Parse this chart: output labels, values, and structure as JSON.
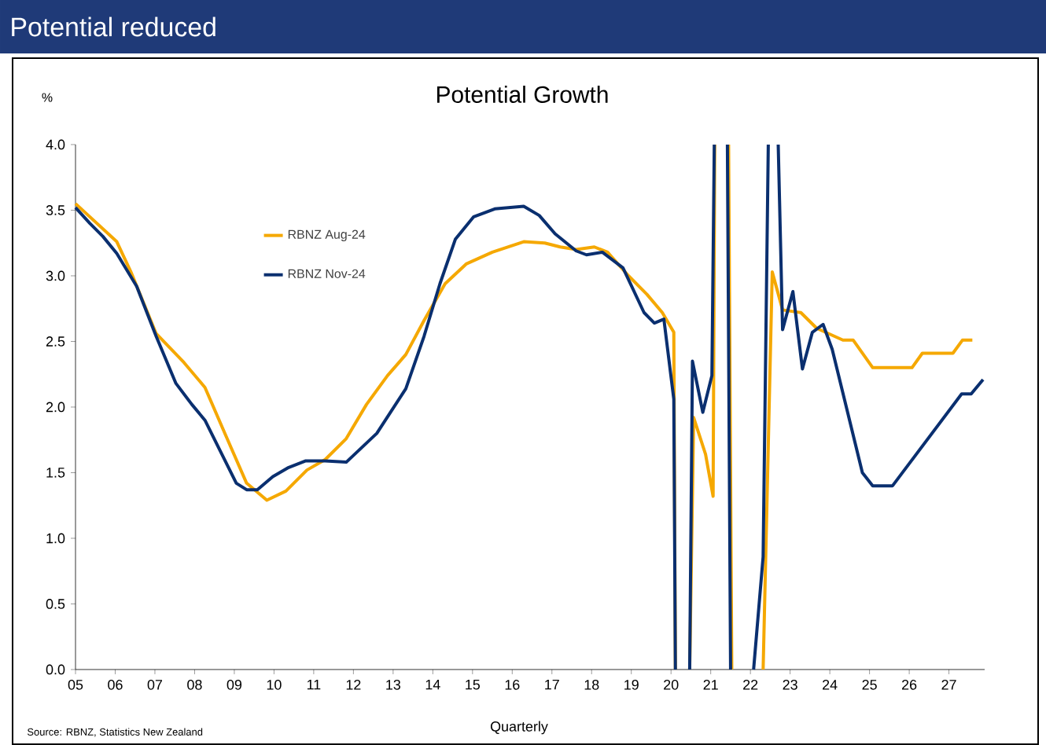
{
  "chart_data": {
    "type": "line",
    "title": "Potential reduced",
    "subtitle": "Potential Growth",
    "xlabel": "Quarterly",
    "ylabel": "%",
    "annotations": [
      "Source: RBNZ, Statistics New Zealand"
    ],
    "xlim": [
      2005,
      2027.9
    ],
    "ylim": [
      0,
      4
    ],
    "xticks": [
      {
        "value": 2005,
        "label": "05"
      },
      {
        "value": 2006,
        "label": "06"
      },
      {
        "value": 2007,
        "label": "07"
      },
      {
        "value": 2008,
        "label": "08"
      },
      {
        "value": 2009,
        "label": "09"
      },
      {
        "value": 2010,
        "label": "10"
      },
      {
        "value": 2011,
        "label": "11"
      },
      {
        "value": 2012,
        "label": "12"
      },
      {
        "value": 2013,
        "label": "13"
      },
      {
        "value": 2014,
        "label": "14"
      },
      {
        "value": 2015,
        "label": "15"
      },
      {
        "value": 2016,
        "label": "16"
      },
      {
        "value": 2017,
        "label": "17"
      },
      {
        "value": 2018,
        "label": "18"
      },
      {
        "value": 2019,
        "label": "19"
      },
      {
        "value": 2020,
        "label": "20"
      },
      {
        "value": 2021,
        "label": "21"
      },
      {
        "value": 2022,
        "label": "22"
      },
      {
        "value": 2023,
        "label": "23"
      },
      {
        "value": 2024,
        "label": "24"
      },
      {
        "value": 2025,
        "label": "25"
      },
      {
        "value": 2026,
        "label": "26"
      },
      {
        "value": 2027,
        "label": "27"
      }
    ],
    "yticks": [
      {
        "value": 0,
        "label": "0.0"
      },
      {
        "value": 0.5,
        "label": "0.5"
      },
      {
        "value": 1,
        "label": "1.0"
      },
      {
        "value": 1.5,
        "label": "1.5"
      },
      {
        "value": 2,
        "label": "2.0"
      },
      {
        "value": 2.5,
        "label": "2.5"
      },
      {
        "value": 3,
        "label": "3.0"
      },
      {
        "value": 3.5,
        "label": "3.5"
      },
      {
        "value": 4,
        "label": "4.0"
      }
    ],
    "legend": "top left",
    "grid": false,
    "marker": "none",
    "line_style": "solid",
    "series": [
      {
        "name": "RBNZ Aug-24",
        "color": "#f5a800",
        "x": [
          2005.0,
          2006.04,
          2006.41,
          2007.03,
          2007.73,
          2008.26,
          2008.79,
          2009.31,
          2009.82,
          2010.3,
          2010.83,
          2011.29,
          2011.82,
          2012.33,
          2012.86,
          2013.32,
          2013.78,
          2014.31,
          2014.84,
          2015.5,
          2016.29,
          2016.82,
          2017.21,
          2017.61,
          2018.07,
          2018.4,
          2018.93,
          2019.39,
          2019.78,
          2020.07,
          2020.11,
          2020.3,
          2020.47,
          2020.57,
          2020.87,
          2021.06,
          2021.1,
          2021.3,
          2021.45,
          2021.53,
          2021.9,
          2022.32,
          2022.55,
          2022.81,
          2023.27,
          2023.67,
          2024.33,
          2024.59,
          2025.08,
          2026.07,
          2026.33,
          2027.1,
          2027.34,
          2027.59
        ],
        "values": [
          3.55,
          3.26,
          3.02,
          2.56,
          2.34,
          2.15,
          1.78,
          1.42,
          1.29,
          1.36,
          1.52,
          1.6,
          1.76,
          2.02,
          2.24,
          2.4,
          2.66,
          2.94,
          3.09,
          3.18,
          3.26,
          3.25,
          3.22,
          3.2,
          3.22,
          3.18,
          3.0,
          2.86,
          2.72,
          2.57,
          0,
          null,
          0,
          1.92,
          1.64,
          1.32,
          4.0,
          null,
          4.0,
          0,
          null,
          0,
          3.03,
          2.74,
          2.72,
          2.6,
          2.51,
          2.51,
          2.3,
          2.3,
          2.41,
          2.41,
          2.51,
          2.51
        ]
      },
      {
        "name": "RBNZ Nov-24",
        "color": "#0a2f6f",
        "x": [
          2005.0,
          2005.36,
          2005.69,
          2006.04,
          2006.54,
          2007.03,
          2007.53,
          2007.93,
          2008.26,
          2008.72,
          2009.05,
          2009.31,
          2009.58,
          2009.97,
          2010.37,
          2010.8,
          2011.29,
          2011.82,
          2012.59,
          2013.32,
          2013.78,
          2014.18,
          2014.57,
          2015.03,
          2015.56,
          2016.29,
          2016.68,
          2017.08,
          2017.61,
          2017.87,
          2018.27,
          2018.79,
          2019.32,
          2019.58,
          2019.82,
          2020.07,
          2020.11,
          2020.3,
          2020.47,
          2020.54,
          2020.8,
          2021.03,
          2021.09,
          2021.25,
          2021.42,
          2021.5,
          2021.8,
          2022.08,
          2022.32,
          2022.45,
          2022.6,
          2022.7,
          2022.81,
          2023.07,
          2023.31,
          2023.56,
          2023.83,
          2024.06,
          2024.82,
          2025.08,
          2025.58,
          2027.32,
          2027.56,
          2027.86
        ],
        "values": [
          3.52,
          3.4,
          3.3,
          3.17,
          2.92,
          2.54,
          2.18,
          2.02,
          1.9,
          1.62,
          1.42,
          1.37,
          1.37,
          1.47,
          1.54,
          1.59,
          1.59,
          1.58,
          1.8,
          2.14,
          2.54,
          2.94,
          3.28,
          3.45,
          3.51,
          3.53,
          3.46,
          3.32,
          3.19,
          3.16,
          3.18,
          3.06,
          2.72,
          2.64,
          2.67,
          2.06,
          0,
          null,
          0,
          2.35,
          1.96,
          2.24,
          4.0,
          null,
          4.0,
          0,
          null,
          0,
          0.86,
          4.0,
          null,
          4.0,
          2.59,
          2.88,
          2.29,
          2.57,
          2.63,
          2.44,
          1.5,
          1.4,
          1.4,
          2.1,
          2.1,
          2.21
        ]
      }
    ]
  }
}
